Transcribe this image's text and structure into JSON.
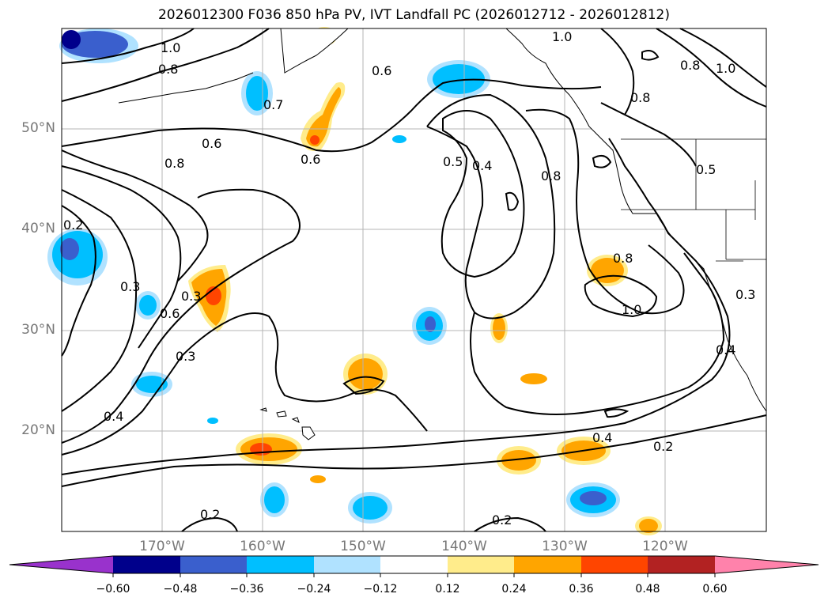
{
  "title": "2026012300 F036 850 hPa PV, IVT Landfall PC (2026012712 - 2026012812)",
  "lat_labels": [
    "50°N",
    "40°N",
    "30°N",
    "20°N"
  ],
  "lon_labels": [
    "170°W",
    "160°W",
    "150°W",
    "140°W",
    "130°W",
    "120°W"
  ],
  "contour_labels": [
    "1.0",
    "0.8",
    "0.7",
    "0.6",
    "0.8",
    "0.6",
    "0.6",
    "0.5",
    "0.4",
    "0.8",
    "1.0",
    "0.8",
    "0.8",
    "1.0",
    "0.5",
    "0.8",
    "1.0",
    "0.3",
    "0.2",
    "0.3",
    "0.6",
    "0.3",
    "0.4",
    "0.4",
    "0.2",
    "0.2",
    "0.2",
    "0.3",
    "0.4"
  ],
  "colorbar": {
    "ticks": [
      "−0.60",
      "−0.48",
      "−0.36",
      "−0.24",
      "−0.12",
      "0.12",
      "0.24",
      "0.36",
      "0.48",
      "0.60"
    ],
    "colors": [
      "#9932cc",
      "#00008b",
      "#3a5fcd",
      "#00bfff",
      "#b0e2ff",
      "#ffffff",
      "#ffec8b",
      "#ffa500",
      "#ff4500",
      "#b22222",
      "#ff82ab"
    ]
  },
  "colors": {
    "land_outline": "#000000",
    "gridline": "#b4b4b4",
    "axis_label": "#777777"
  }
}
